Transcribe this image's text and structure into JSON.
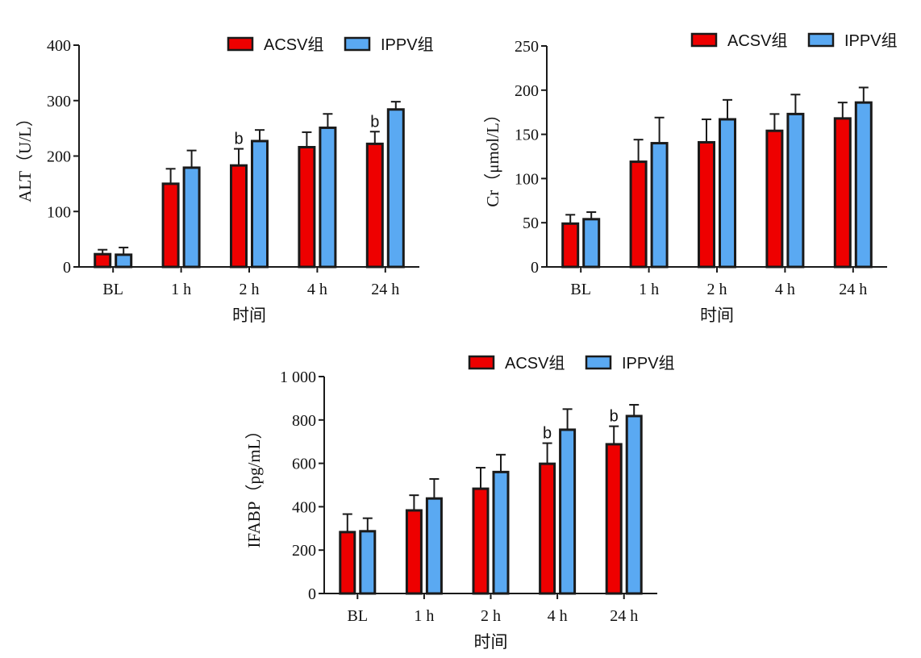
{
  "colors": {
    "series_a": "#ee0000",
    "series_b": "#5aa9f2",
    "axis": "#1a1a1a",
    "error_bar": "#1a1a1a"
  },
  "chart_data": [
    {
      "type": "bar",
      "categories": [
        "BL",
        "1 h",
        "2 h",
        "4 h",
        "24 h"
      ],
      "xlabel": "时间",
      "ylabel": "ALT（U/L）",
      "yticks": [
        "0",
        "100",
        "200",
        "300",
        "400"
      ],
      "ylim": [
        0,
        400
      ],
      "legend_position": "top-right",
      "series": [
        {
          "name": "ACSV组",
          "values": [
            23,
            150,
            183,
            216,
            222
          ],
          "errors": [
            8,
            27,
            30,
            27,
            22
          ],
          "annotations": [
            "",
            "",
            "b",
            "",
            "b"
          ]
        },
        {
          "name": "IPPV组",
          "values": [
            22,
            179,
            227,
            251,
            284
          ],
          "errors": [
            13,
            31,
            20,
            25,
            14
          ],
          "annotations": [
            "",
            "",
            "",
            "",
            ""
          ]
        }
      ]
    },
    {
      "type": "bar",
      "categories": [
        "BL",
        "1 h",
        "2 h",
        "4 h",
        "24 h"
      ],
      "xlabel": "时间",
      "ylabel": "Cr（μmol/L）",
      "yticks": [
        "0",
        "50",
        "100",
        "150",
        "200",
        "250"
      ],
      "ylim": [
        0,
        250
      ],
      "legend_position": "top-right",
      "series": [
        {
          "name": "ACSV组",
          "values": [
            49,
            119,
            141,
            154,
            168
          ],
          "errors": [
            10,
            25,
            26,
            19,
            18
          ],
          "annotations": [
            "",
            "",
            "",
            "",
            ""
          ]
        },
        {
          "name": "IPPV组",
          "values": [
            54,
            140,
            167,
            173,
            186
          ],
          "errors": [
            8,
            29,
            22,
            22,
            17
          ],
          "annotations": [
            "",
            "",
            "",
            "",
            ""
          ]
        }
      ]
    },
    {
      "type": "bar",
      "categories": [
        "BL",
        "1 h",
        "2 h",
        "4 h",
        "24 h"
      ],
      "xlabel": "时间",
      "ylabel": "IFABP（pg/mL）",
      "yticks": [
        "0",
        "200",
        "400",
        "600",
        "800",
        "1 000"
      ],
      "ylim": [
        0,
        1000
      ],
      "legend_position": "top-right",
      "series": [
        {
          "name": "ACSV组",
          "values": [
            283,
            383,
            483,
            598,
            688
          ],
          "errors": [
            83,
            70,
            97,
            95,
            83
          ],
          "annotations": [
            "",
            "",
            "",
            "b",
            "b"
          ]
        },
        {
          "name": "IPPV组",
          "values": [
            287,
            438,
            560,
            755,
            818
          ],
          "errors": [
            60,
            90,
            80,
            95,
            52
          ],
          "annotations": [
            "",
            "",
            "",
            "",
            ""
          ]
        }
      ]
    }
  ]
}
